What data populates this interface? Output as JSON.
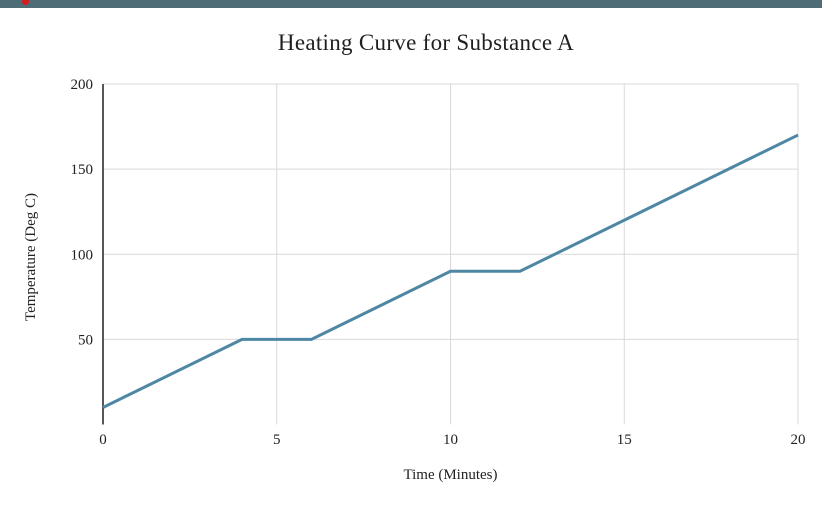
{
  "page": {
    "top_bar_color": "#4d6c75",
    "notification_dot_color": "#d41a1a",
    "background_color": "#ffffff"
  },
  "chart_data": {
    "type": "line",
    "title": "Heating Curve for Substance A",
    "xlabel": "Time (Minutes)",
    "ylabel": "Temperature (Deg C)",
    "x": [
      0,
      4,
      6,
      10,
      12,
      20
    ],
    "y": [
      10,
      50,
      50,
      90,
      90,
      170
    ],
    "xticks": [
      0,
      5,
      10,
      15,
      20
    ],
    "yticks": [
      50,
      100,
      150,
      200
    ],
    "xlim": [
      0,
      20
    ],
    "ylim": [
      0,
      200
    ],
    "grid": true,
    "legend": "none",
    "line_color": "#4e87a3",
    "gridline_color": "#d9d9d9",
    "axis_line_color": "#444444",
    "tick_label_color": "#222222"
  }
}
